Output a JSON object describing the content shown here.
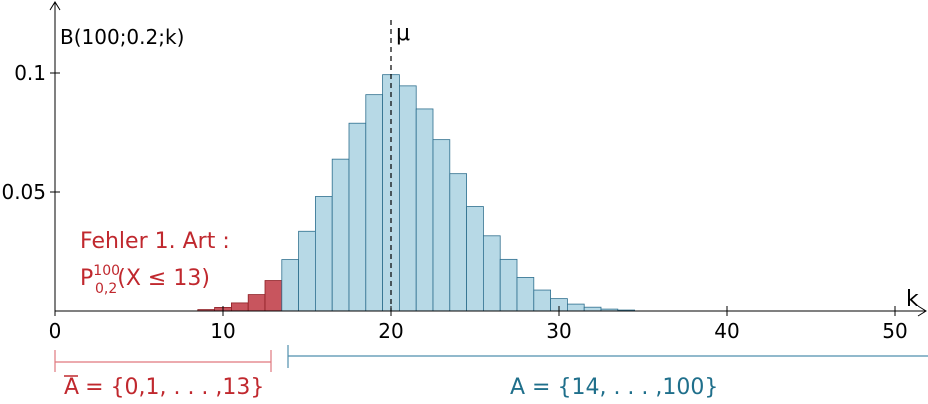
{
  "chart_data": {
    "type": "bar",
    "ylabel": "B(100;0.2;k)",
    "xlabel": "k",
    "mean_label": "μ",
    "mean": 20,
    "xlim": [
      0,
      52
    ],
    "ylim": [
      0,
      0.12
    ],
    "xticks": [
      0,
      10,
      20,
      30,
      40,
      50
    ],
    "xtick_labels": [
      "0",
      "10",
      "20",
      "30",
      "40",
      "50"
    ],
    "yticks": [
      0.05,
      0.1
    ],
    "ytick_labels": [
      "0.05",
      "0.1"
    ],
    "x": [
      0,
      1,
      2,
      3,
      4,
      5,
      6,
      7,
      8,
      9,
      10,
      11,
      12,
      13,
      14,
      15,
      16,
      17,
      18,
      19,
      20,
      21,
      22,
      23,
      24,
      25,
      26,
      27,
      28,
      29,
      30,
      31,
      32,
      33,
      34,
      35,
      36,
      37,
      38,
      39,
      40,
      41,
      42,
      43,
      44,
      45,
      46,
      47,
      48,
      49,
      50
    ],
    "values": [
      0.0,
      0.0,
      0.0,
      0.0,
      0.0,
      0.0,
      0.0,
      0.0001,
      0.0002,
      0.0006,
      0.0015,
      0.0034,
      0.0069,
      0.0128,
      0.0216,
      0.0335,
      0.0481,
      0.0638,
      0.0789,
      0.0909,
      0.0993,
      0.0946,
      0.0849,
      0.072,
      0.0577,
      0.0439,
      0.0316,
      0.0217,
      0.0141,
      0.0088,
      0.0052,
      0.0029,
      0.0016,
      0.0008,
      0.0004,
      0.0002,
      0.0001,
      0.0,
      0.0,
      0.0,
      0.0,
      0.0,
      0.0,
      0.0,
      0.0,
      0.0,
      0.0,
      0.0,
      0.0,
      0.0,
      0.0
    ],
    "rejection_region_max_k": 13,
    "colors": {
      "rejection": "#c8555e",
      "acceptance": "#b7d9e6",
      "rejection_text": "#c0282e",
      "acceptance_text": "#1f6f8b"
    },
    "annotations": {
      "error_title": "Fehler 1.  Art :",
      "error_prob": "P",
      "error_prob_sup": "100",
      "error_prob_sub": "0,2",
      "error_prob_rest": "(X ≤ 13)",
      "abar_set": "= {0,1, . . . ,13}",
      "abar_letter": "A",
      "a_set": "A = {14, . . . ,100}"
    }
  }
}
